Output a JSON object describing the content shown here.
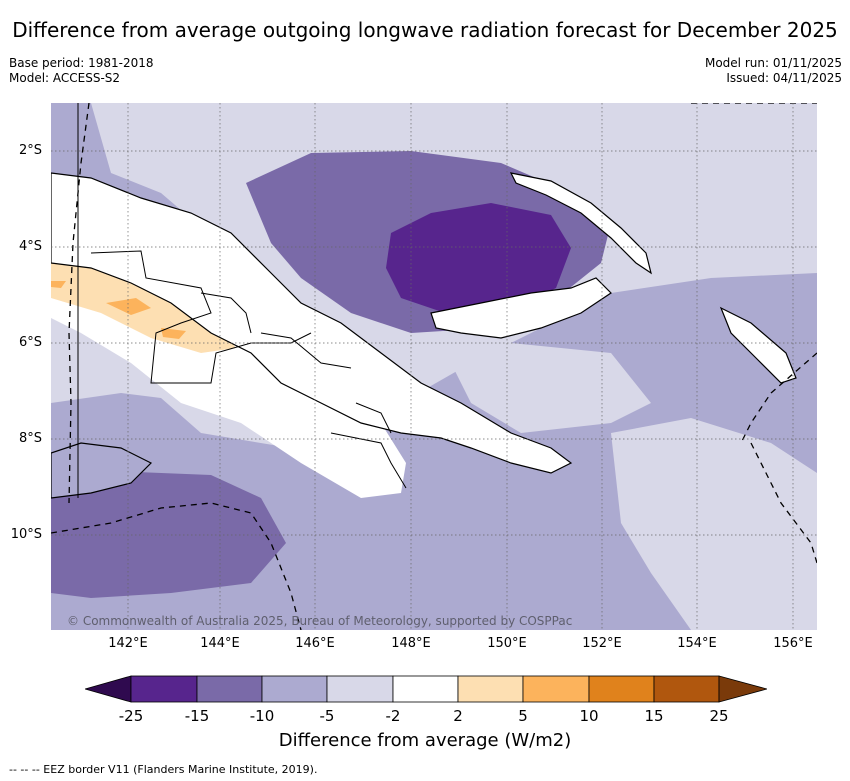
{
  "title": "Difference from average outgoing longwave radiation forecast for December 2025",
  "base_period": "Base period: 1981-2018",
  "model": "Model: ACCESS-S2",
  "model_run": "Model run: 01/11/2025",
  "issued": "Issued: 04/11/2025",
  "copyright": "© Commonwealth of Australia 2025, Bureau of Meteorology, supported by COSPPac",
  "lat_labels": [
    "2°S",
    "4°S",
    "6°S",
    "8°S",
    "10°S"
  ],
  "lon_labels": [
    "142°E",
    "144°E",
    "146°E",
    "148°E",
    "150°E",
    "152°E",
    "154°E",
    "156°E"
  ],
  "colorbar": {
    "title": "Difference from average (W/m2)",
    "ticks": [
      "-25",
      "-15",
      "-10",
      "-5",
      "-2",
      "2",
      "5",
      "10",
      "15",
      "25"
    ],
    "colors": [
      "#2f0a4f",
      "#57258d",
      "#7a6aa8",
      "#acaad0",
      "#d8d8e8",
      "#ffffff",
      "#fddfb2",
      "#fcb35c",
      "#e0821c",
      "#b0570e",
      "#7a3a0a"
    ]
  },
  "legend_text": "-- EEZ border V11 (Flanders Marine Institute, 2019)."
}
